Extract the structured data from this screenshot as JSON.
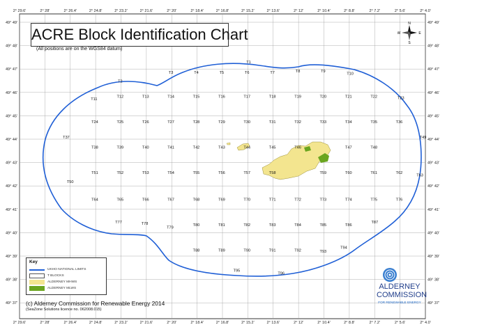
{
  "title": "ACRE Block Identification Chart",
  "datum_note": "(All positions are on the WGS84 datum)",
  "longitude_ticks": [
    "2° 29.6'",
    "2° 28'",
    "2° 26.4'",
    "2° 24.8'",
    "2° 23.2'",
    "2° 21.6'",
    "2° 20'",
    "2° 18.4'",
    "2° 16.8'",
    "2° 15.2'",
    "2° 13.6'",
    "2° 12'",
    "2° 10.4'",
    "2° 8.8'",
    "2° 7.2'",
    "2° 5.6'",
    "2° 4.0'"
  ],
  "latitude_ticks": [
    "49° 49'",
    "49° 48'",
    "49° 47'",
    "49° 46'",
    "49° 45'",
    "49° 44'",
    "49° 43'",
    "49° 42'",
    "49° 41'",
    "49° 40'",
    "49° 39'",
    "49° 38'",
    "49° 37'"
  ],
  "blocks": [
    {
      "id": "T1",
      "lon": -2.2525,
      "lat": 49.7842
    },
    {
      "id": "T2",
      "lon": -2.3875,
      "lat": 49.7717
    },
    {
      "id": "T3",
      "lon": -2.3342,
      "lat": 49.7775
    },
    {
      "id": "T4",
      "lon": -2.3075,
      "lat": 49.7775
    },
    {
      "id": "T5",
      "lon": -2.2808,
      "lat": 49.7775
    },
    {
      "id": "T6",
      "lon": -2.2542,
      "lat": 49.7775
    },
    {
      "id": "T7",
      "lon": -2.2275,
      "lat": 49.7775
    },
    {
      "id": "T8",
      "lon": -2.2008,
      "lat": 49.7783
    },
    {
      "id": "T9",
      "lon": -2.1742,
      "lat": 49.7783
    },
    {
      "id": "T10",
      "lon": -2.1458,
      "lat": 49.7767
    },
    {
      "id": "T11",
      "lon": -2.415,
      "lat": 49.76
    },
    {
      "id": "T12",
      "lon": -2.3875,
      "lat": 49.7617
    },
    {
      "id": "T13",
      "lon": -2.3608,
      "lat": 49.7617
    },
    {
      "id": "T14",
      "lon": -2.3342,
      "lat": 49.7617
    },
    {
      "id": "T15",
      "lon": -2.3075,
      "lat": 49.7617
    },
    {
      "id": "T16",
      "lon": -2.2808,
      "lat": 49.7617
    },
    {
      "id": "T17",
      "lon": -2.2542,
      "lat": 49.7617
    },
    {
      "id": "T18",
      "lon": -2.2275,
      "lat": 49.7617
    },
    {
      "id": "T19",
      "lon": -2.2008,
      "lat": 49.7617
    },
    {
      "id": "T20",
      "lon": -2.1742,
      "lat": 49.7617
    },
    {
      "id": "T21",
      "lon": -2.1475,
      "lat": 49.7617
    },
    {
      "id": "T22",
      "lon": -2.1208,
      "lat": 49.7617
    },
    {
      "id": "T23",
      "lon": -2.0925,
      "lat": 49.7608
    },
    {
      "id": "T24",
      "lon": -2.4142,
      "lat": 49.745
    },
    {
      "id": "T25",
      "lon": -2.3875,
      "lat": 49.745
    },
    {
      "id": "T26",
      "lon": -2.3608,
      "lat": 49.745
    },
    {
      "id": "T27",
      "lon": -2.3342,
      "lat": 49.745
    },
    {
      "id": "T28",
      "lon": -2.3075,
      "lat": 49.745
    },
    {
      "id": "T29",
      "lon": -2.2808,
      "lat": 49.745
    },
    {
      "id": "T30",
      "lon": -2.2542,
      "lat": 49.745
    },
    {
      "id": "T31",
      "lon": -2.2275,
      "lat": 49.745
    },
    {
      "id": "T32",
      "lon": -2.2008,
      "lat": 49.745
    },
    {
      "id": "T33",
      "lon": -2.1742,
      "lat": 49.745
    },
    {
      "id": "T34",
      "lon": -2.1475,
      "lat": 49.745
    },
    {
      "id": "T35",
      "lon": -2.1208,
      "lat": 49.745
    },
    {
      "id": "T36",
      "lon": -2.0942,
      "lat": 49.745
    },
    {
      "id": "T37",
      "lon": -2.4442,
      "lat": 49.735
    },
    {
      "id": "T38",
      "lon": -2.4142,
      "lat": 49.7283
    },
    {
      "id": "T39",
      "lon": -2.3875,
      "lat": 49.7283
    },
    {
      "id": "T40",
      "lon": -2.3608,
      "lat": 49.7283
    },
    {
      "id": "T41",
      "lon": -2.3342,
      "lat": 49.7283
    },
    {
      "id": "T42",
      "lon": -2.3075,
      "lat": 49.7283
    },
    {
      "id": "T43",
      "lon": -2.2808,
      "lat": 49.7283
    },
    {
      "id": "T44",
      "lon": -2.2542,
      "lat": 49.7283
    },
    {
      "id": "T45",
      "lon": -2.2275,
      "lat": 49.7283
    },
    {
      "id": "T46",
      "lon": -2.2008,
      "lat": 49.7283
    },
    {
      "id": "T47",
      "lon": -2.1475,
      "lat": 49.7283
    },
    {
      "id": "T48",
      "lon": -2.1208,
      "lat": 49.7283
    },
    {
      "id": "T49",
      "lon": -2.0692,
      "lat": 49.735
    },
    {
      "id": "T50",
      "lon": -2.44,
      "lat": 49.7058
    },
    {
      "id": "T51",
      "lon": -2.4142,
      "lat": 49.7117
    },
    {
      "id": "T52",
      "lon": -2.3875,
      "lat": 49.7117
    },
    {
      "id": "T53",
      "lon": -2.3608,
      "lat": 49.7117
    },
    {
      "id": "T54",
      "lon": -2.3342,
      "lat": 49.7117
    },
    {
      "id": "T55",
      "lon": -2.3075,
      "lat": 49.7117
    },
    {
      "id": "T56",
      "lon": -2.2808,
      "lat": 49.7117
    },
    {
      "id": "T57",
      "lon": -2.2542,
      "lat": 49.7117
    },
    {
      "id": "T58",
      "lon": -2.2275,
      "lat": 49.7117
    },
    {
      "id": "T59",
      "lon": -2.1742,
      "lat": 49.7117
    },
    {
      "id": "T60",
      "lon": -2.1475,
      "lat": 49.7117
    },
    {
      "id": "T61",
      "lon": -2.1208,
      "lat": 49.7117
    },
    {
      "id": "T62",
      "lon": -2.0942,
      "lat": 49.7117
    },
    {
      "id": "T63",
      "lon": -2.0725,
      "lat": 49.71
    },
    {
      "id": "T64",
      "lon": -2.4142,
      "lat": 49.6942
    },
    {
      "id": "T65",
      "lon": -2.3875,
      "lat": 49.6942
    },
    {
      "id": "T66",
      "lon": -2.3608,
      "lat": 49.6942
    },
    {
      "id": "T67",
      "lon": -2.3342,
      "lat": 49.6942
    },
    {
      "id": "T68",
      "lon": -2.3075,
      "lat": 49.6942
    },
    {
      "id": "T69",
      "lon": -2.2808,
      "lat": 49.6942
    },
    {
      "id": "T70",
      "lon": -2.2542,
      "lat": 49.6942
    },
    {
      "id": "T71",
      "lon": -2.2275,
      "lat": 49.6942
    },
    {
      "id": "T72",
      "lon": -2.2008,
      "lat": 49.6942
    },
    {
      "id": "T73",
      "lon": -2.1742,
      "lat": 49.6942
    },
    {
      "id": "T74",
      "lon": -2.1475,
      "lat": 49.6942
    },
    {
      "id": "T75",
      "lon": -2.1208,
      "lat": 49.6942
    },
    {
      "id": "T76",
      "lon": -2.0942,
      "lat": 49.6942
    },
    {
      "id": "T77",
      "lon": -2.3892,
      "lat": 49.6792
    },
    {
      "id": "T78",
      "lon": -2.3617,
      "lat": 49.6783
    },
    {
      "id": "T79",
      "lon": -2.335,
      "lat": 49.6758
    },
    {
      "id": "T80",
      "lon": -2.3075,
      "lat": 49.6775
    },
    {
      "id": "T81",
      "lon": -2.2808,
      "lat": 49.6775
    },
    {
      "id": "T82",
      "lon": -2.2542,
      "lat": 49.6775
    },
    {
      "id": "T83",
      "lon": -2.2275,
      "lat": 49.6775
    },
    {
      "id": "T84",
      "lon": -2.2008,
      "lat": 49.6775
    },
    {
      "id": "T85",
      "lon": -2.1742,
      "lat": 49.6775
    },
    {
      "id": "T86",
      "lon": -2.1475,
      "lat": 49.6775
    },
    {
      "id": "T87",
      "lon": -2.12,
      "lat": 49.6792
    },
    {
      "id": "T88",
      "lon": -2.3075,
      "lat": 49.6608
    },
    {
      "id": "T89",
      "lon": -2.2808,
      "lat": 49.6608
    },
    {
      "id": "T90",
      "lon": -2.2542,
      "lat": 49.6608
    },
    {
      "id": "T91",
      "lon": -2.2275,
      "lat": 49.6608
    },
    {
      "id": "T92",
      "lon": -2.2008,
      "lat": 49.6608
    },
    {
      "id": "T93",
      "lon": -2.1742,
      "lat": 49.66
    },
    {
      "id": "T94",
      "lon": -2.1525,
      "lat": 49.6625
    },
    {
      "id": "T95",
      "lon": -2.265,
      "lat": 49.6475
    },
    {
      "id": "T96",
      "lon": -2.2183,
      "lat": 49.6458
    }
  ],
  "key": {
    "title": "Key",
    "items": [
      {
        "label": "UKHO NATIONAL LIMITS",
        "color": "#1f5fd6",
        "kind": "line"
      },
      {
        "label": "T BLOCKS",
        "color": "#ffffff",
        "kind": "box"
      },
      {
        "label": "ALDERNEY MHWS",
        "color": "#f3e58f",
        "kind": "fill"
      },
      {
        "label": "ALDERNEY MLWS",
        "color": "#6aa51f",
        "kind": "fill"
      }
    ]
  },
  "credit": "(c) Alderney Commission for Renewable Energy 2014",
  "licence": "(SeaZone Solutions licence no. 062008.015)",
  "logo": {
    "line1": "ALDERNEY",
    "line2": "COMMISSION",
    "tagline": "FOR RENEWABLE ENERGY",
    "color": "#1f3d8a",
    "tag_color": "#1f6ac8"
  },
  "compass": {
    "n": "N",
    "s": "S",
    "e": "E",
    "w": "W"
  },
  "colors": {
    "boundary": "#1f5fd6",
    "grid": "#9a9a9a",
    "land": "#f3e58f",
    "rock": "#6aa51f"
  }
}
